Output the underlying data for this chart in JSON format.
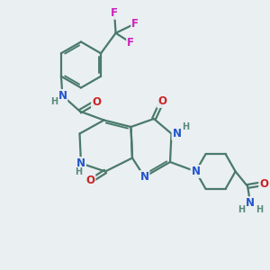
{
  "background_color": "#eaeff2",
  "bond_color": "#4a7a6a",
  "bond_width": 1.6,
  "atom_colors": {
    "N": "#2255cc",
    "O": "#cc2222",
    "F": "#cc22bb",
    "H": "#5a8a7a",
    "C": "#4a7a6a"
  },
  "font_size_atom": 8.5,
  "font_size_h": 7.0
}
